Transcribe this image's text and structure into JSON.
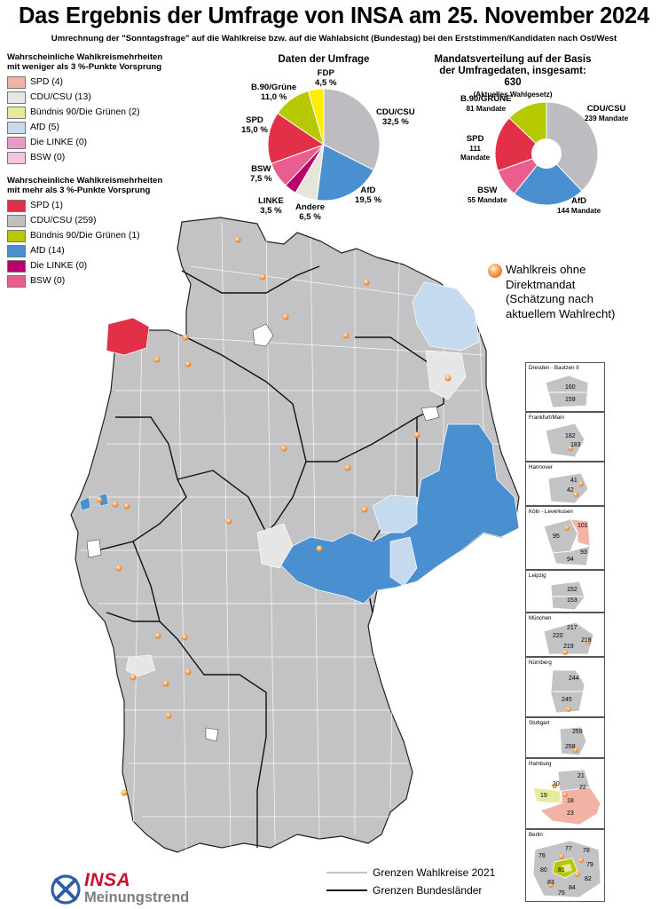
{
  "header": {
    "title": "Das Ergebnis der Umfrage von INSA am 25. November 2024",
    "subtitle": "Umrechnung der \"Sonntagsfrage\" auf die Wahlkreise bzw. auf die Wahlabsicht (Bundestag) bei den Erststimmen/Kandidaten nach Ost/West"
  },
  "legend_weak": {
    "heading_line1": "Wahrscheinliche Wahlkreismehrheiten",
    "heading_line2": "mit weniger als 3 %-Punkte Vorsprung",
    "items": [
      {
        "label": "SPD (4)",
        "color": "#f2b3a6"
      },
      {
        "label": "CDU/CSU (13)",
        "color": "#e6e6e6"
      },
      {
        "label": "Bündnis 90/Die Grünen (2)",
        "color": "#e5ea9d"
      },
      {
        "label": "AfD (5)",
        "color": "#c5d9ef"
      },
      {
        "label": "Die LINKE (0)",
        "color": "#e89ac4"
      },
      {
        "label": "BSW (0)",
        "color": "#f6c4d8"
      }
    ]
  },
  "legend_strong": {
    "heading_line1": "Wahrscheinliche Wahlkreismehrheiten",
    "heading_line2": "mit mehr als 3 %-Punkte Vorsprung",
    "items": [
      {
        "label": "SPD (1)",
        "color": "#e23049"
      },
      {
        "label": "CDU/CSU (259)",
        "color": "#bfbfbf"
      },
      {
        "label": "Bündnis 90/Die Grünen (1)",
        "color": "#b6c800"
      },
      {
        "label": "AfD (14)",
        "color": "#4a90d0"
      },
      {
        "label": "Die LINKE (0)",
        "color": "#b5006e"
      },
      {
        "label": "BSW (0)",
        "color": "#e95e8e"
      }
    ]
  },
  "survey_pie": {
    "title": "Daten der Umfrage",
    "slices": [
      {
        "party": "CDU/CSU",
        "value": 32.5,
        "label": "32,5 %",
        "color": "#bdbdc1"
      },
      {
        "party": "AfD",
        "value": 19.5,
        "label": "19,5 %",
        "color": "#4a90d0"
      },
      {
        "party": "Andere",
        "value": 6.5,
        "label": "6,5 %",
        "color": "#e5e5da"
      },
      {
        "party": "LINKE",
        "value": 3.5,
        "label": "3,5 %",
        "color": "#b5006e"
      },
      {
        "party": "BSW",
        "value": 7.5,
        "label": "7,5 %",
        "color": "#e95e8e"
      },
      {
        "party": "SPD",
        "value": 15.0,
        "label": "15,0 %",
        "color": "#e23049"
      },
      {
        "party": "B.90/Grüne",
        "value": 11.0,
        "label": "11,0 %",
        "color": "#b6c800"
      },
      {
        "party": "FDP",
        "value": 4.5,
        "label": "4,5 %",
        "color": "#ffed00"
      }
    ]
  },
  "seat_pie": {
    "title_line1": "Mandatsverteilung auf der Basis",
    "title_line2": "der Umfragedaten, insgesamt: 630",
    "title_line3": "(Aktuelles Wahlgesetz)",
    "slices": [
      {
        "party": "CDU/CSU",
        "value": 239,
        "label": "239 Mandate",
        "color": "#bdbdc1"
      },
      {
        "party": "AfD",
        "value": 144,
        "label": "144 Mandate",
        "color": "#4a90d0"
      },
      {
        "party": "BSW",
        "value": 55,
        "label": "55 Mandate",
        "color": "#e95e8e"
      },
      {
        "party": "SPD",
        "value": 111,
        "label": "Mandate",
        "color": "#e23049"
      },
      {
        "party": "B.90/GRÜNE",
        "value": 81,
        "label": "81 Mandate",
        "color": "#b6c800"
      }
    ],
    "spd_number": "111"
  },
  "note": {
    "line1": "Wahlkreis ohne",
    "line2": "Direktmandat",
    "line3": "(Schätzung nach",
    "line4": "aktuellem Wahlrecht)"
  },
  "insets": [
    {
      "title": "Dresden - Bautzen II",
      "numbers": [
        "160",
        "159"
      ]
    },
    {
      "title": "Frankfurt/Main",
      "numbers": [
        "182",
        "183"
      ]
    },
    {
      "title": "Hannover",
      "numbers": [
        "41",
        "42"
      ]
    },
    {
      "title": "Köln - Leverkusen",
      "numbers": [
        "101",
        "95",
        "93",
        "94"
      ]
    },
    {
      "title": "Leipzig",
      "numbers": [
        "152",
        "153"
      ]
    },
    {
      "title": "München",
      "numbers": [
        "217",
        "220",
        "218",
        "219"
      ]
    },
    {
      "title": "Nürnberg",
      "numbers": [
        "244",
        "245"
      ]
    },
    {
      "title": "Stuttgart",
      "numbers": [
        "259",
        "258"
      ]
    },
    {
      "title": "Hamburg",
      "numbers": [
        "21",
        "20",
        "22",
        "19",
        "18",
        "23"
      ]
    },
    {
      "title": "Berlin",
      "numbers": [
        "76",
        "77",
        "78",
        "79",
        "80",
        "81",
        "82",
        "83",
        "84",
        "75"
      ]
    }
  ],
  "map_legend": {
    "line1": "Grenzen Wahlkreise 2021",
    "line2": "Grenzen Bundesländer"
  },
  "logo": {
    "brand": "INSA",
    "tagline": "Meinungstrend"
  }
}
